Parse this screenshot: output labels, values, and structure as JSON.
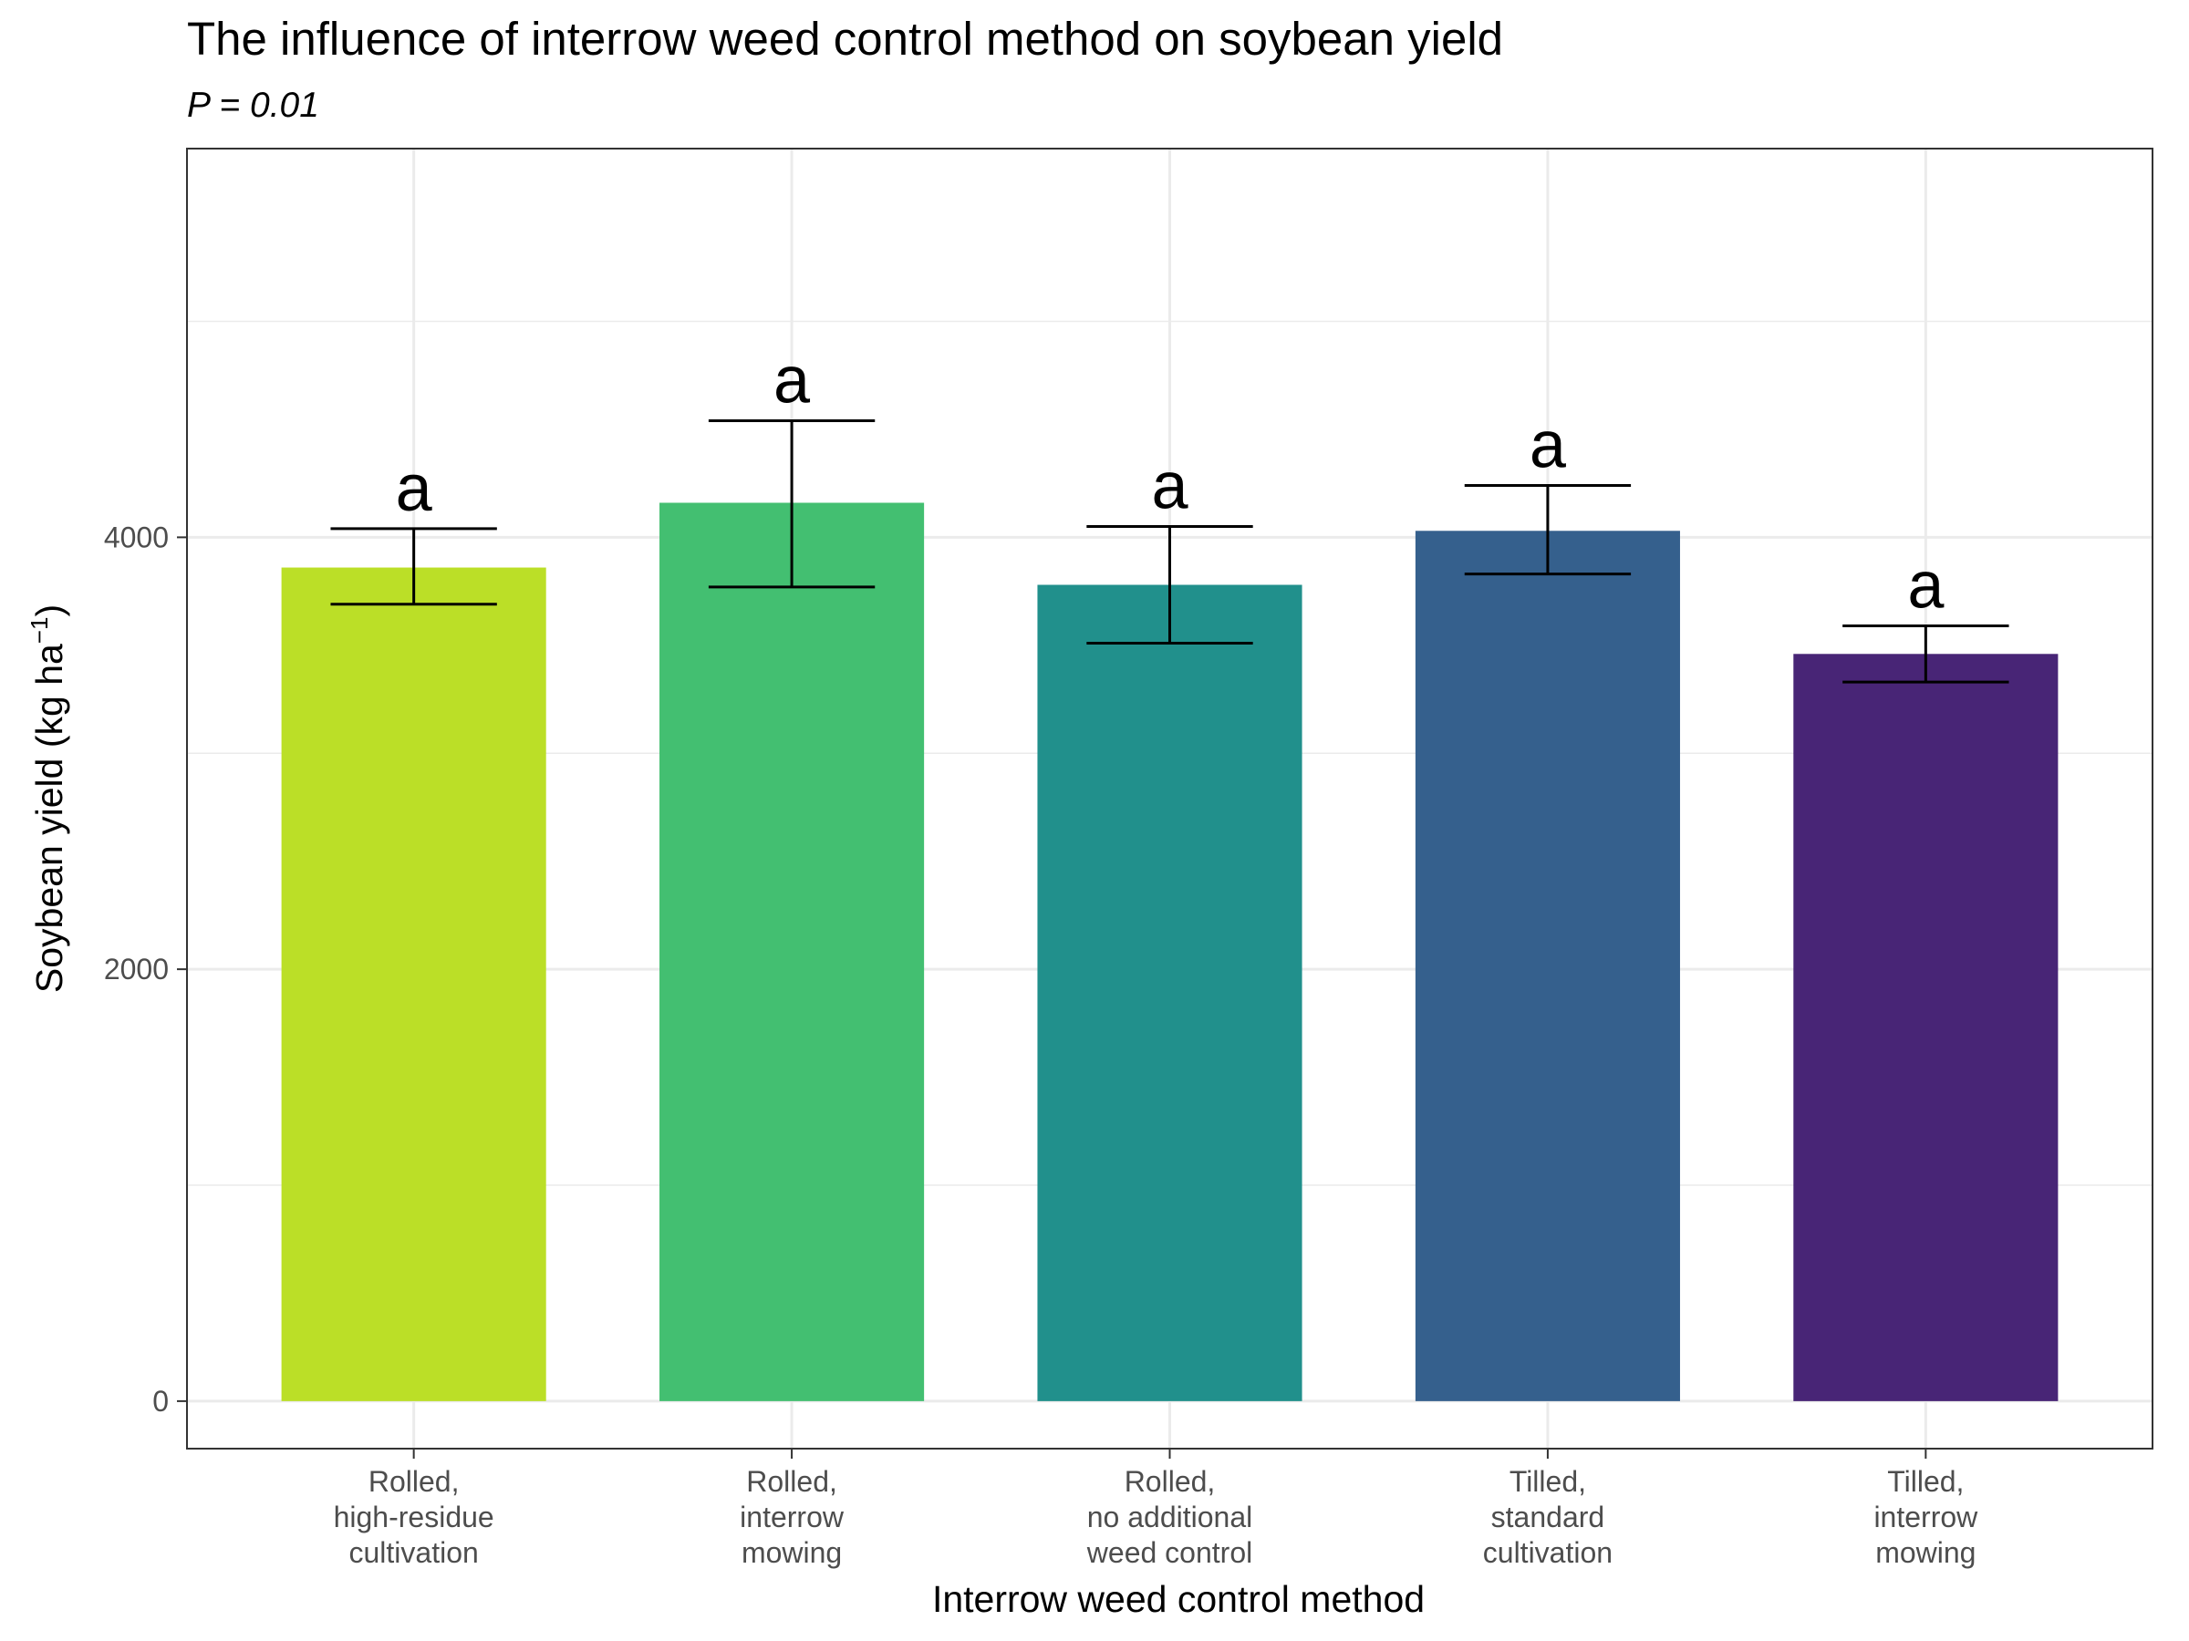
{
  "chart_data": {
    "type": "bar",
    "title": "The influence of interrow weed control method on soybean yield",
    "subtitle": "P = 0.01",
    "xlabel": "Interrow weed control method",
    "ylabel": {
      "main": "Soybean yield (kg ha",
      "superscript": "−1",
      "close": ")"
    },
    "ylim": [
      -220,
      5800
    ],
    "yticks": [
      0,
      2000,
      4000
    ],
    "ytick_labels": [
      "0",
      "2000",
      "4000"
    ],
    "ygrid_minor": [
      1000,
      3000,
      5000
    ],
    "grid": true,
    "legend": "none",
    "categories": [
      [
        "Rolled,",
        "high-residue",
        "cultivation"
      ],
      [
        "Rolled,",
        "interrow",
        "mowing"
      ],
      [
        "Rolled,",
        "no additional",
        "weed control"
      ],
      [
        "Tilled,",
        "standard",
        "cultivation"
      ],
      [
        "Tilled,",
        "interrow",
        "mowing"
      ]
    ],
    "values": [
      3860,
      4160,
      3780,
      4030,
      3460
    ],
    "error_low": [
      3690,
      3770,
      3510,
      3830,
      3330
    ],
    "error_high": [
      4040,
      4540,
      4050,
      4240,
      3590
    ],
    "letters": [
      "a",
      "a",
      "a",
      "a",
      "a"
    ],
    "colors": [
      "#bbdf27",
      "#43bf71",
      "#21908c",
      "#35608d",
      "#482576"
    ]
  }
}
